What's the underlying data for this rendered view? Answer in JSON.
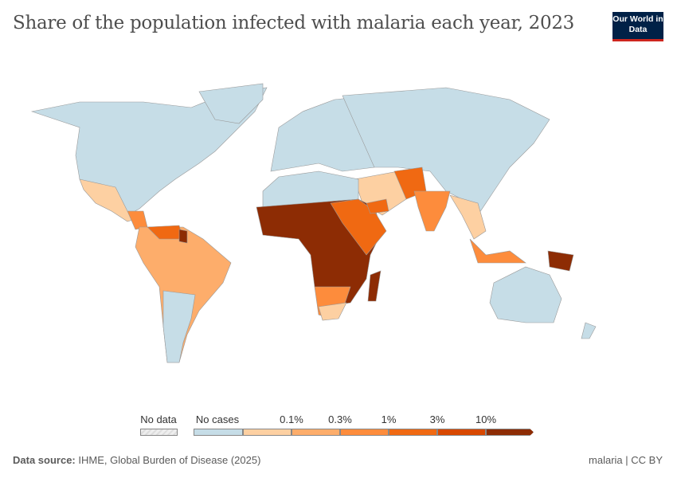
{
  "title": "Share of the population infected with malaria each year, 2023",
  "logo": "Our World in Data",
  "legend": {
    "no_data": "No data",
    "no_cases": "No cases",
    "bins": [
      "0.1%",
      "0.3%",
      "1%",
      "3%",
      "10%"
    ],
    "colors": {
      "no_data": "#eeeeee",
      "no_cases": "#c6dde7",
      "b1": "#fdd0a2",
      "b2": "#fdad6b",
      "b3": "#fd8c3c",
      "b4": "#f06912",
      "b5": "#d84801",
      "b6": "#8d2c04"
    }
  },
  "footer": {
    "source_label": "Data source:",
    "source": "IHME, Global Burden of Disease (2025)",
    "right": "malaria | CC BY"
  }
}
